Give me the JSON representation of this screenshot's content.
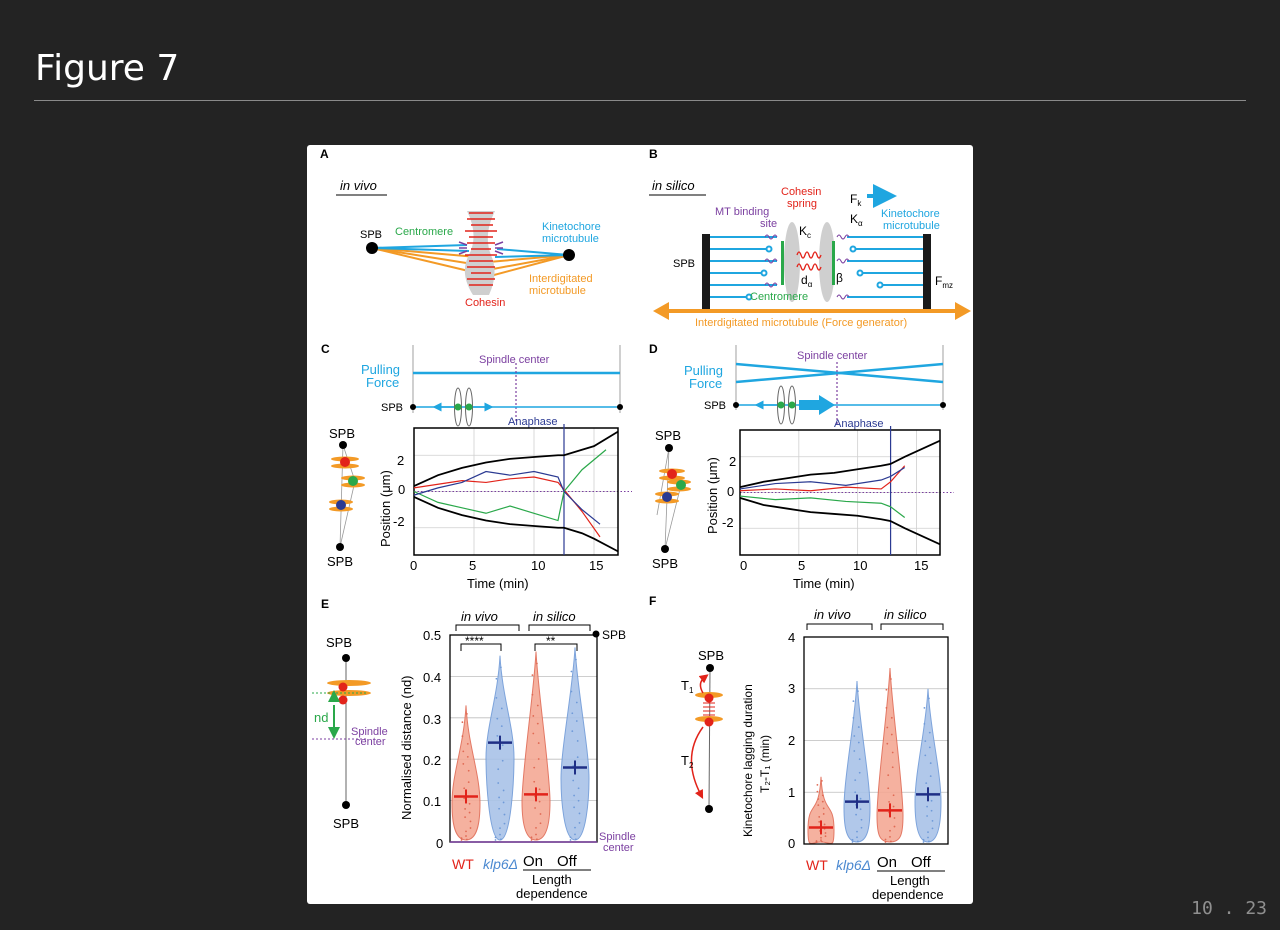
{
  "slide": {
    "title": "Figure 7",
    "page_number": "10 . 23"
  },
  "figure": {
    "panels": {
      "A": {
        "letter": "A",
        "subtitle": "in vivo",
        "spb": "SPB",
        "centromere": "Centromere",
        "kinetochore_mt": [
          "Kinetochore",
          "microtubule"
        ],
        "interdigitated_mt": [
          "Interdigitated",
          "microtubule"
        ],
        "cohesin": "Cohesin"
      },
      "B": {
        "letter": "B",
        "subtitle": "in silico",
        "cohesin_spring": [
          "Cohesin",
          "spring"
        ],
        "mt_binding_site": [
          "MT binding",
          "site"
        ],
        "kc": "K",
        "kc_sub": "c",
        "fk": "F",
        "fk_sub": "k",
        "ka": "K",
        "ka_sub": "α",
        "kinetochore_mt": [
          "Kinetochore",
          "microtubule"
        ],
        "spb": "SPB",
        "d_alpha": "d",
        "d_alpha_sub": "α",
        "beta": "β",
        "fmz": "F",
        "fmz_sub": "mz",
        "centromere": "Centromere",
        "interdigitated": "Interdigitated microtubule (Force generator)"
      },
      "C": {
        "letter": "C",
        "pulling_force": [
          "Pulling",
          "Force"
        ],
        "spindle_center": "Spindle center",
        "spb": "SPB",
        "anaphase": "Anaphase",
        "spb_top": "SPB",
        "spb_bottom": "SPB",
        "ylabel": "Position (μm)",
        "xlabel": "Time (min)",
        "yticks": [
          "2",
          "0",
          "-2"
        ],
        "xticks": [
          "0",
          "5",
          "10",
          "15"
        ]
      },
      "D": {
        "letter": "D",
        "pulling_force": [
          "Pulling",
          "Force"
        ],
        "spindle_center": "Spindle center",
        "spb": "SPB",
        "anaphase": "Anaphase",
        "spb_top": "SPB",
        "spb_bottom": "SPB",
        "ylabel": "Position (μm)",
        "xlabel": "Time (min)",
        "yticks": [
          "2",
          "0",
          "-2"
        ],
        "xticks": [
          "0",
          "5",
          "10",
          "15"
        ]
      },
      "E": {
        "letter": "E",
        "spb_top": "SPB",
        "spb_bottom": "SPB",
        "nd": "nd",
        "spindle_center": [
          "Spindle",
          "center"
        ],
        "group_invivo": "in vivo",
        "group_insilico": "in silico",
        "sig1": "****",
        "sig2": "**",
        "spb_right": "SPB",
        "spindle_center_right": [
          "Spindle",
          "center"
        ],
        "ylabel": "Normalised distance (nd)",
        "yticks": [
          "0.5",
          "0.4",
          "0.3",
          "0.2",
          "0.1",
          "0"
        ],
        "xcats": [
          "WT",
          "klp6Δ",
          "On",
          "Off"
        ],
        "length_dependence": [
          "Length",
          "dependence"
        ]
      },
      "F": {
        "letter": "F",
        "spb": "SPB",
        "t1": "T",
        "t1_sub": "1",
        "t2": "T",
        "t2_sub": "2",
        "group_invivo": "in vivo",
        "group_insilico": "in silico",
        "ylabel": "Kinetochore lagging duration",
        "ylabel2": "T₂-T₁ (min)",
        "yticks": [
          "4",
          "3",
          "2",
          "1",
          "0"
        ],
        "xcats": [
          "WT",
          "klp6Δ",
          "On",
          "Off"
        ],
        "length_dependence": [
          "Length",
          "dependence"
        ]
      }
    },
    "colors": {
      "cyan": "#1fa6e0",
      "orange": "#f39a26",
      "red": "#e2231a",
      "green": "#2aa84a",
      "blue": "#2b3a92",
      "purple": "#7b3fa0",
      "violin_red": "#f4a995",
      "violin_blue": "#a9c3e8",
      "navy": "#1f2f86"
    }
  },
  "chart_data": [
    {
      "type": "line",
      "panel": "C",
      "xlabel": "Time (min)",
      "ylabel": "Position (μm)",
      "xlim": [
        0,
        17
      ],
      "ylim": [
        -3.5,
        3.5
      ],
      "xticks": [
        0,
        5,
        10,
        15
      ],
      "yticks": [
        -2,
        0,
        2
      ],
      "anaphase_x": 12.5,
      "grid": true,
      "series": [
        {
          "color": "black",
          "x": [
            0,
            2,
            4,
            6,
            8,
            10,
            12,
            12.5,
            14,
            15,
            17
          ],
          "y": [
            0.3,
            0.9,
            1.3,
            1.6,
            1.8,
            1.9,
            2.0,
            2.0,
            2.3,
            2.5,
            3.3
          ]
        },
        {
          "color": "black",
          "x": [
            0,
            2,
            4,
            6,
            8,
            10,
            12,
            12.5,
            14,
            15,
            17
          ],
          "y": [
            -0.3,
            -0.9,
            -1.3,
            -1.6,
            -1.8,
            -1.9,
            -2.0,
            -2.0,
            -2.3,
            -2.6,
            -3.3
          ]
        },
        {
          "color": "red",
          "x": [
            0,
            2,
            4,
            6,
            8,
            10,
            12,
            12.5,
            14,
            15.5
          ],
          "y": [
            0.2,
            0.4,
            0.6,
            0.5,
            0.7,
            0.8,
            0.5,
            0.1,
            -1.1,
            -2.5
          ]
        },
        {
          "color": "green",
          "x": [
            0,
            2,
            4,
            6,
            8,
            10,
            12,
            12.5,
            14,
            16
          ],
          "y": [
            0,
            -0.6,
            -0.9,
            -1.2,
            -0.8,
            -1.2,
            -1.6,
            0,
            1.2,
            2.3
          ]
        },
        {
          "color": "blue",
          "x": [
            0,
            2,
            4,
            6,
            8,
            10,
            12,
            12.5,
            14,
            15.5
          ],
          "y": [
            -0.2,
            0.2,
            0.5,
            1.1,
            0.9,
            1.1,
            0.8,
            0,
            -1.0,
            -1.8
          ]
        }
      ]
    },
    {
      "type": "line",
      "panel": "D",
      "xlabel": "Time (min)",
      "ylabel": "Position (μm)",
      "xlim": [
        0,
        17
      ],
      "ylim": [
        -3.5,
        3.5
      ],
      "xticks": [
        0,
        5,
        10,
        15
      ],
      "yticks": [
        -2,
        0,
        2
      ],
      "anaphase_x": 12.8,
      "grid": true,
      "series": [
        {
          "color": "black",
          "x": [
            0,
            2,
            4,
            6,
            8,
            10,
            12,
            12.8,
            14,
            17
          ],
          "y": [
            0.3,
            0.6,
            0.8,
            1.0,
            1.1,
            1.3,
            1.5,
            1.6,
            2.0,
            2.9
          ]
        },
        {
          "color": "black",
          "x": [
            0,
            2,
            4,
            6,
            8,
            10,
            12,
            12.8,
            14,
            17
          ],
          "y": [
            -0.3,
            -0.7,
            -0.9,
            -1.1,
            -1.2,
            -1.3,
            -1.5,
            -1.6,
            -2.0,
            -2.9
          ]
        },
        {
          "color": "red",
          "x": [
            0,
            3,
            6,
            9,
            12,
            12.8,
            14
          ],
          "y": [
            0.1,
            0.2,
            0.1,
            0.3,
            0.2,
            0.6,
            1.5
          ]
        },
        {
          "color": "green",
          "x": [
            0,
            3,
            6,
            9,
            12,
            12.8,
            14
          ],
          "y": [
            -0.2,
            -0.4,
            -0.3,
            -0.5,
            -0.6,
            -0.8,
            -1.4
          ]
        },
        {
          "color": "blue",
          "x": [
            0,
            3,
            6,
            9,
            12,
            12.8,
            14
          ],
          "y": [
            0.2,
            0.5,
            0.6,
            0.4,
            0.7,
            0.9,
            1.4
          ]
        }
      ]
    },
    {
      "type": "violin",
      "panel": "E",
      "ylabel": "Normalised distance (nd)",
      "ylim": [
        0,
        0.5
      ],
      "categories": [
        "WT",
        "klp6Δ",
        "On",
        "Off"
      ],
      "groups": [
        "in vivo",
        "in silico"
      ],
      "mean": [
        0.11,
        0.24,
        0.115,
        0.18
      ],
      "max": [
        0.33,
        0.45,
        0.46,
        0.47
      ],
      "significance": [
        "****",
        "**"
      ]
    },
    {
      "type": "violin",
      "panel": "F",
      "ylabel": "Kinetochore lagging duration T₂-T₁ (min)",
      "ylim": [
        0,
        4
      ],
      "categories": [
        "WT",
        "klp6Δ",
        "On",
        "Off"
      ],
      "groups": [
        "in vivo",
        "in silico"
      ],
      "mean": [
        0.32,
        0.82,
        0.65,
        0.96
      ],
      "max": [
        1.3,
        3.15,
        3.4,
        3.0
      ]
    }
  ]
}
